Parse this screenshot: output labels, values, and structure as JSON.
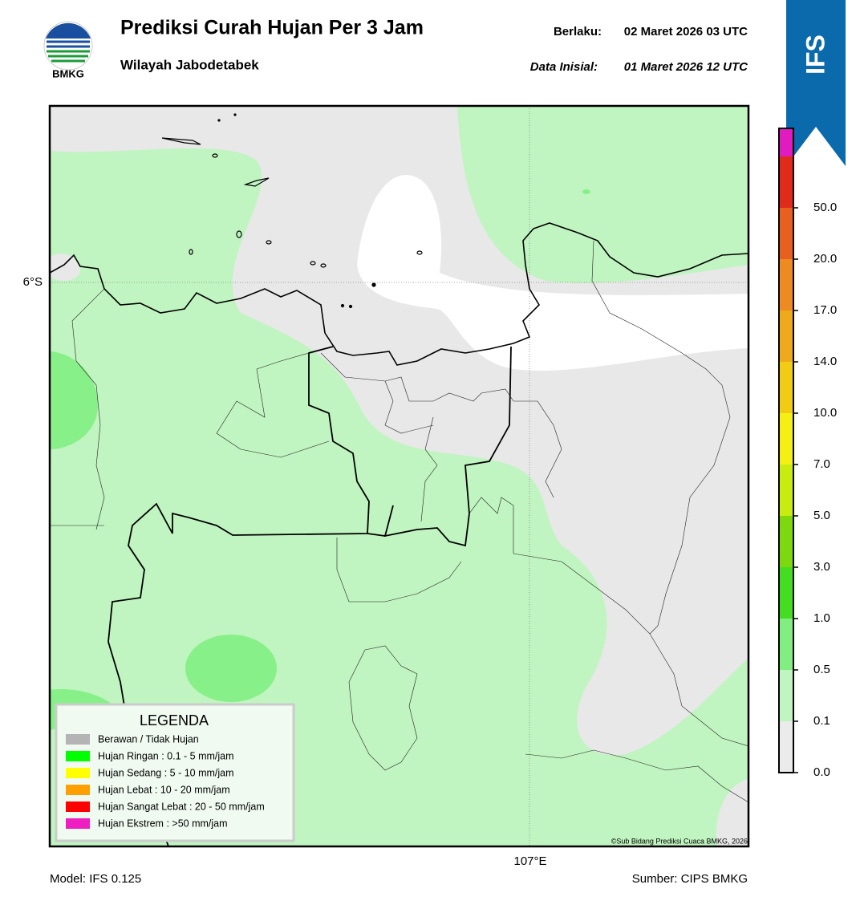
{
  "header": {
    "title": "Prediksi Curah Hujan Per 3 Jam",
    "subtitle": "Wilayah Jabodetabek",
    "logo_text": "BMKG",
    "valid_label": "Berlaku:",
    "valid_value": "02 Maret 2026 03 UTC",
    "initial_label": "Data Inisial:",
    "initial_value": "01 Maret 2026 12 UTC",
    "badge": "IFS"
  },
  "map": {
    "lat_label": "6°S",
    "lon_label": "107°E",
    "credit": "©Sub Bidang Prediksi Cuaca BMKG, 2026"
  },
  "legend": {
    "title": "LEGENDA",
    "items": [
      {
        "label": "Berawan / Tidak Hujan",
        "color": "#b4b4b4"
      },
      {
        "label": "Hujan Ringan : 0.1 - 5 mm/jam",
        "color": "#00ff00"
      },
      {
        "label": "Hujan Sedang : 5 - 10 mm/jam",
        "color": "#ffff00"
      },
      {
        "label": "Hujan Lebat : 10 - 20 mm/jam",
        "color": "#ffa000"
      },
      {
        "label": "Hujan Sangat Lebat : 20 - 50 mm/jam",
        "color": "#ff0000"
      },
      {
        "label": "Hujan Ekstrem : >50 mm/jam",
        "color": "#ee1ec0"
      }
    ]
  },
  "colorbar": {
    "ticks": [
      "0.0",
      "0.1",
      "0.5",
      "1.0",
      "3.0",
      "5.0",
      "7.0",
      "10.0",
      "14.0",
      "17.0",
      "20.0",
      "50.0"
    ],
    "colors": [
      "#ebebeb",
      "#c0f4c0",
      "#82ee82",
      "#44dd22",
      "#7ed80e",
      "#c8ec10",
      "#f4f014",
      "#f2cc12",
      "#eeaa1c",
      "#ee8a22",
      "#e86020",
      "#e02a1c",
      "#e01cc0"
    ]
  },
  "footer": {
    "model": "Model: IFS 0.125",
    "source": "Sumber: CIPS BMKG"
  }
}
